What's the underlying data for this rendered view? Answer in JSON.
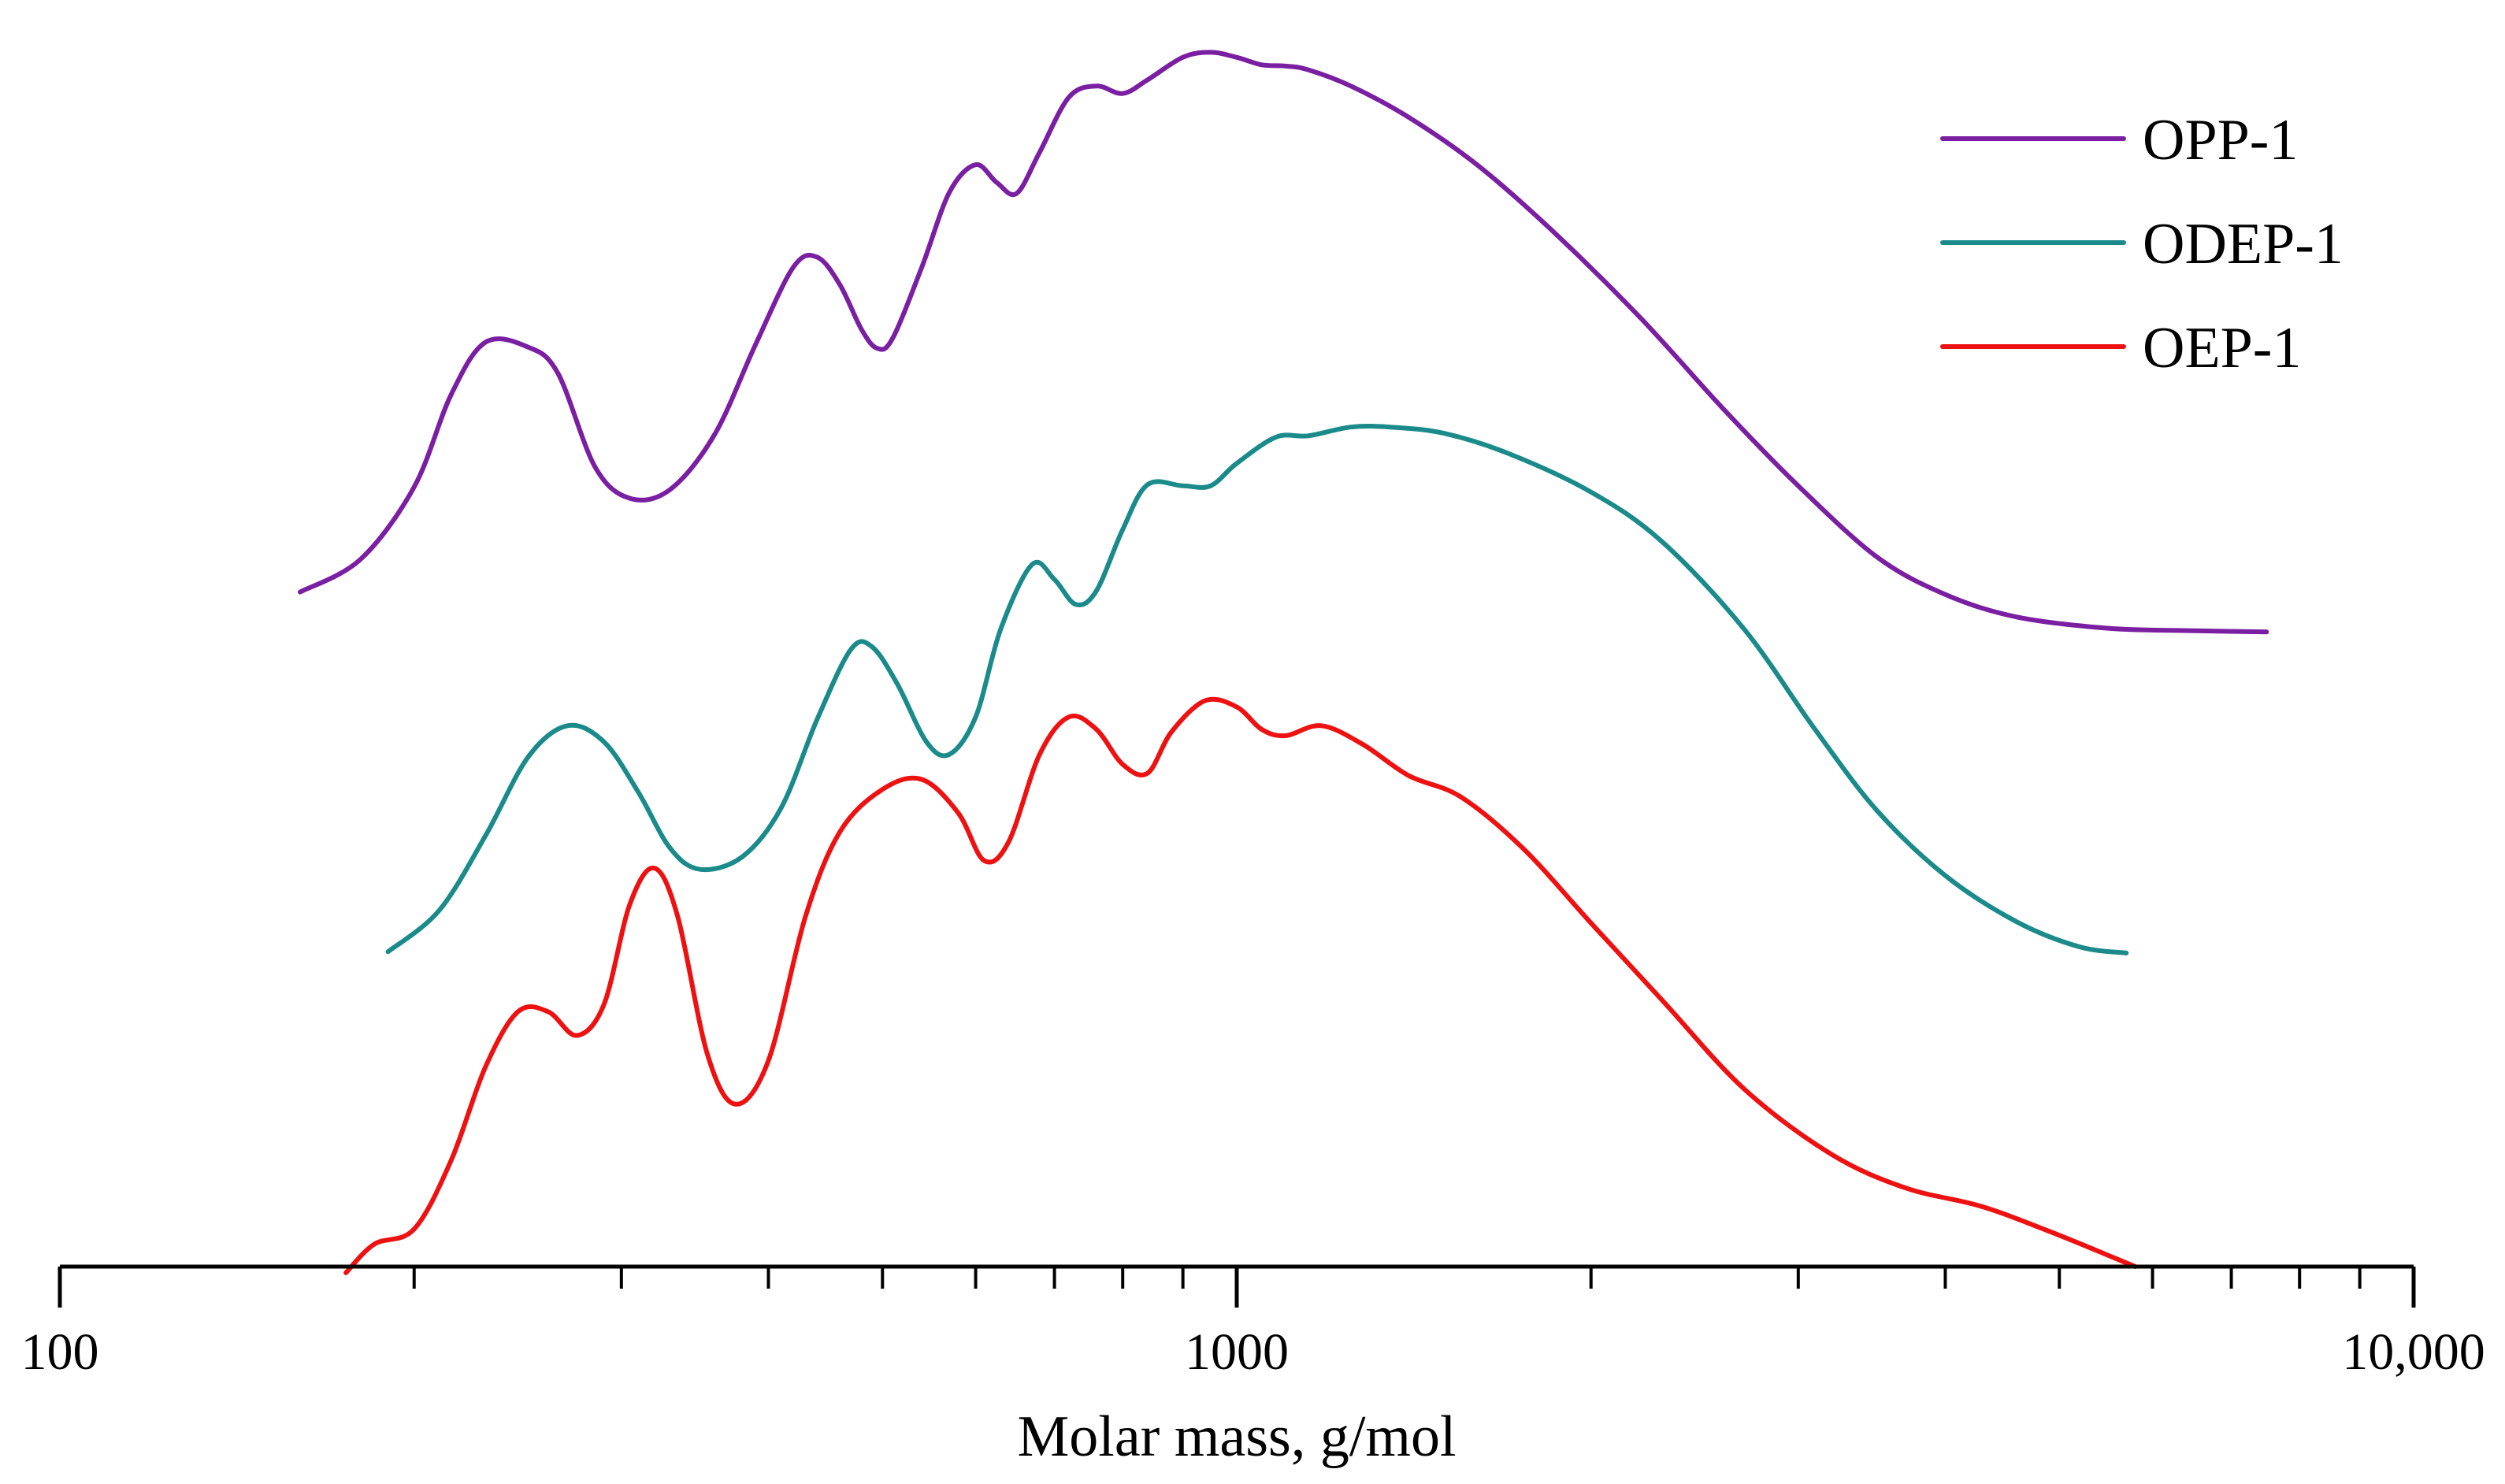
{
  "chart_data": {
    "type": "line",
    "title": "",
    "xlabel": "Molar mass, g/mol",
    "ylabel": "",
    "x_scale": "log",
    "xlim": [
      100,
      10000
    ],
    "x_ticks": [
      {
        "value": 100,
        "label": "100"
      },
      {
        "value": 1000,
        "label": "1000"
      },
      {
        "value": 10000,
        "label": "10,000"
      }
    ],
    "y_axis_visible": false,
    "y_units": "relative signal (stacked, arbitrary)",
    "ylim": [
      0,
      1
    ],
    "legend_position": "top-right",
    "series": [
      {
        "name": "OPP-1",
        "color": "#7a1fa2",
        "points": [
          [
            160,
            0.54
          ],
          [
            180,
            0.566
          ],
          [
            200,
            0.624
          ],
          [
            215,
            0.698
          ],
          [
            230,
            0.74
          ],
          [
            250,
            0.736
          ],
          [
            265,
            0.715
          ],
          [
            285,
            0.64
          ],
          [
            305,
            0.615
          ],
          [
            330,
            0.622
          ],
          [
            360,
            0.666
          ],
          [
            390,
            0.738
          ],
          [
            420,
            0.8
          ],
          [
            440,
            0.808
          ],
          [
            460,
            0.786
          ],
          [
            480,
            0.75
          ],
          [
            495,
            0.735
          ],
          [
            510,
            0.743
          ],
          [
            540,
            0.8
          ],
          [
            570,
            0.86
          ],
          [
            600,
            0.882
          ],
          [
            625,
            0.868
          ],
          [
            650,
            0.859
          ],
          [
            680,
            0.892
          ],
          [
            720,
            0.936
          ],
          [
            760,
            0.945
          ],
          [
            800,
            0.939
          ],
          [
            840,
            0.95
          ],
          [
            900,
            0.968
          ],
          [
            950,
            0.972
          ],
          [
            1000,
            0.968
          ],
          [
            1050,
            0.962
          ],
          [
            1100,
            0.961
          ],
          [
            1150,
            0.958
          ],
          [
            1250,
            0.945
          ],
          [
            1400,
            0.92
          ],
          [
            1600,
            0.882
          ],
          [
            1850,
            0.83
          ],
          [
            2200,
            0.76
          ],
          [
            2600,
            0.685
          ],
          [
            3000,
            0.625
          ],
          [
            3500,
            0.568
          ],
          [
            4000,
            0.538
          ],
          [
            4600,
            0.52
          ],
          [
            5500,
            0.511
          ],
          [
            6500,
            0.509
          ],
          [
            7500,
            0.508
          ]
        ]
      },
      {
        "name": "ODEP-1",
        "color": "#1a8a8a",
        "points": [
          [
            190,
            0.252
          ],
          [
            210,
            0.285
          ],
          [
            230,
            0.345
          ],
          [
            250,
            0.408
          ],
          [
            270,
            0.433
          ],
          [
            290,
            0.42
          ],
          [
            310,
            0.38
          ],
          [
            330,
            0.335
          ],
          [
            350,
            0.318
          ],
          [
            380,
            0.328
          ],
          [
            410,
            0.367
          ],
          [
            440,
            0.438
          ],
          [
            470,
            0.494
          ],
          [
            490,
            0.496
          ],
          [
            515,
            0.466
          ],
          [
            545,
            0.42
          ],
          [
            570,
            0.41
          ],
          [
            600,
            0.44
          ],
          [
            630,
            0.51
          ],
          [
            670,
            0.562
          ],
          [
            700,
            0.55
          ],
          [
            730,
            0.53
          ],
          [
            760,
            0.541
          ],
          [
            800,
            0.59
          ],
          [
            840,
            0.626
          ],
          [
            900,
            0.625
          ],
          [
            950,
            0.625
          ],
          [
            1000,
            0.643
          ],
          [
            1080,
            0.664
          ],
          [
            1150,
            0.665
          ],
          [
            1250,
            0.672
          ],
          [
            1350,
            0.672
          ],
          [
            1500,
            0.667
          ],
          [
            1700,
            0.651
          ],
          [
            2000,
            0.62
          ],
          [
            2300,
            0.58
          ],
          [
            2700,
            0.51
          ],
          [
            3100,
            0.43
          ],
          [
            3500,
            0.365
          ],
          [
            4000,
            0.313
          ],
          [
            4600,
            0.276
          ],
          [
            5200,
            0.256
          ],
          [
            5700,
            0.251
          ]
        ]
      },
      {
        "name": "OEP-1",
        "color": "#ee1111",
        "points": [
          [
            175,
            -0.005
          ],
          [
            185,
            0.018
          ],
          [
            200,
            0.03
          ],
          [
            215,
            0.085
          ],
          [
            230,
            0.16
          ],
          [
            245,
            0.204
          ],
          [
            260,
            0.204
          ],
          [
            275,
            0.185
          ],
          [
            290,
            0.21
          ],
          [
            305,
            0.29
          ],
          [
            320,
            0.319
          ],
          [
            335,
            0.28
          ],
          [
            355,
            0.17
          ],
          [
            375,
            0.13
          ],
          [
            400,
            0.165
          ],
          [
            430,
            0.28
          ],
          [
            460,
            0.348
          ],
          [
            500,
            0.382
          ],
          [
            540,
            0.39
          ],
          [
            580,
            0.363
          ],
          [
            610,
            0.325
          ],
          [
            640,
            0.34
          ],
          [
            680,
            0.41
          ],
          [
            720,
            0.44
          ],
          [
            760,
            0.43
          ],
          [
            800,
            0.402
          ],
          [
            840,
            0.395
          ],
          [
            880,
            0.428
          ],
          [
            940,
            0.453
          ],
          [
            1000,
            0.448
          ],
          [
            1050,
            0.43
          ],
          [
            1100,
            0.425
          ],
          [
            1180,
            0.433
          ],
          [
            1280,
            0.418
          ],
          [
            1400,
            0.393
          ],
          [
            1550,
            0.376
          ],
          [
            1750,
            0.335
          ],
          [
            2000,
            0.275
          ],
          [
            2300,
            0.213
          ],
          [
            2700,
            0.142
          ],
          [
            3200,
            0.09
          ],
          [
            3700,
            0.063
          ],
          [
            4300,
            0.048
          ],
          [
            5000,
            0.025
          ],
          [
            5800,
            0.0
          ]
        ]
      }
    ]
  }
}
